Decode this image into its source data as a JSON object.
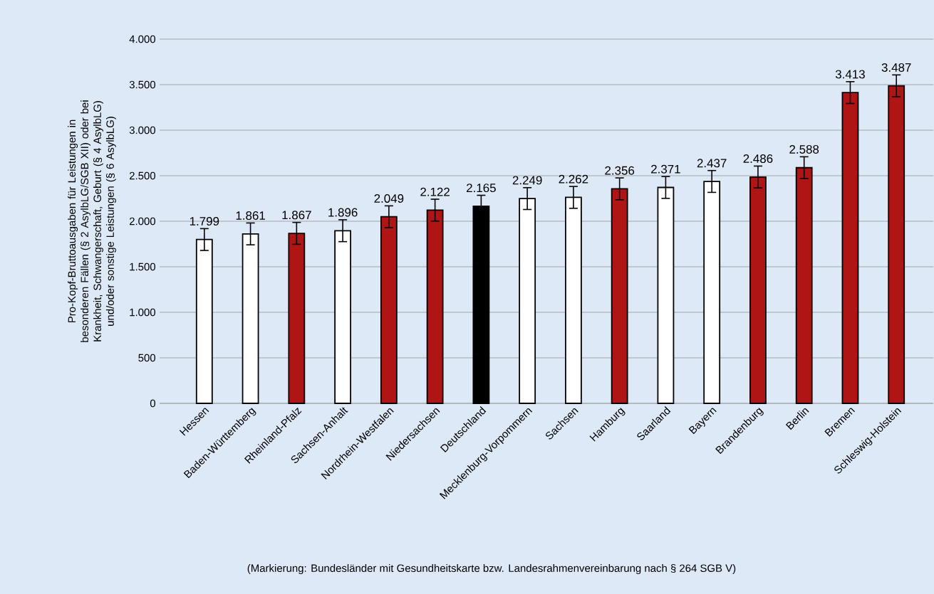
{
  "chart_data": {
    "type": "bar",
    "ylabel": "Pro-Kopf-Bruttoausgaben für Leistungen in besonderen Fällen (§ 2 AsylbLG/SGB XII) oder bei Krankheit, Schwangerschaft, Geburt (§ 4 AsylbLG) und/oder sonstige Leistungen (§ 6 AsylbLG)",
    "categories": [
      "Hessen",
      "Baden-Württemberg",
      "Rheinland-Pfalz",
      "Sachsen-Anhalt",
      "Nordrhein-Westfalen",
      "Niedersachsen",
      "Deutschland",
      "Mecklenburg-Vorpommern",
      "Sachsen",
      "Hamburg",
      "Saarland",
      "Bayern",
      "Brandenburg",
      "Berlin",
      "Bremen",
      "Schleswig-Holstein"
    ],
    "values": [
      1799,
      1861,
      1867,
      1896,
      2049,
      2122,
      2165,
      2249,
      2262,
      2356,
      2371,
      2437,
      2486,
      2588,
      3413,
      3487
    ],
    "value_labels": [
      "1.799",
      "1.861",
      "1.867",
      "1.896",
      "2.049",
      "2.122",
      "2.165",
      "2.249",
      "2.262",
      "2.356",
      "2.371",
      "2.437",
      "2.486",
      "2.588",
      "3.413",
      "3.487"
    ],
    "colors": [
      "#ffffff",
      "#ffffff",
      "#b01515",
      "#ffffff",
      "#b01515",
      "#b01515",
      "#000000",
      "#ffffff",
      "#ffffff",
      "#b01515",
      "#ffffff",
      "#ffffff",
      "#b01515",
      "#b01515",
      "#b01515",
      "#b01515"
    ],
    "errors": [
      120,
      120,
      120,
      120,
      120,
      120,
      120,
      120,
      120,
      120,
      120,
      120,
      120,
      120,
      120,
      120
    ],
    "ylim": [
      0,
      4000
    ],
    "yticks": [
      0,
      500,
      {
        "value": 1000,
        "label": "1.000"
      },
      {
        "value": 1500,
        "label": "1.500"
      },
      {
        "value": 2000,
        "label": "2.000"
      },
      {
        "value": 2500,
        "label": "2.500"
      },
      {
        "value": 3000,
        "label": "3.000"
      },
      {
        "value": 3500,
        "label": "3.500"
      },
      {
        "value": 4000,
        "label": "4.000"
      }
    ],
    "grid": "y",
    "annotations": [
      "(Markierung: Bundesländer mit Gesundheitskarte bzw. Landesrahmenvereinbarung nach § 264 SGB V)"
    ]
  }
}
